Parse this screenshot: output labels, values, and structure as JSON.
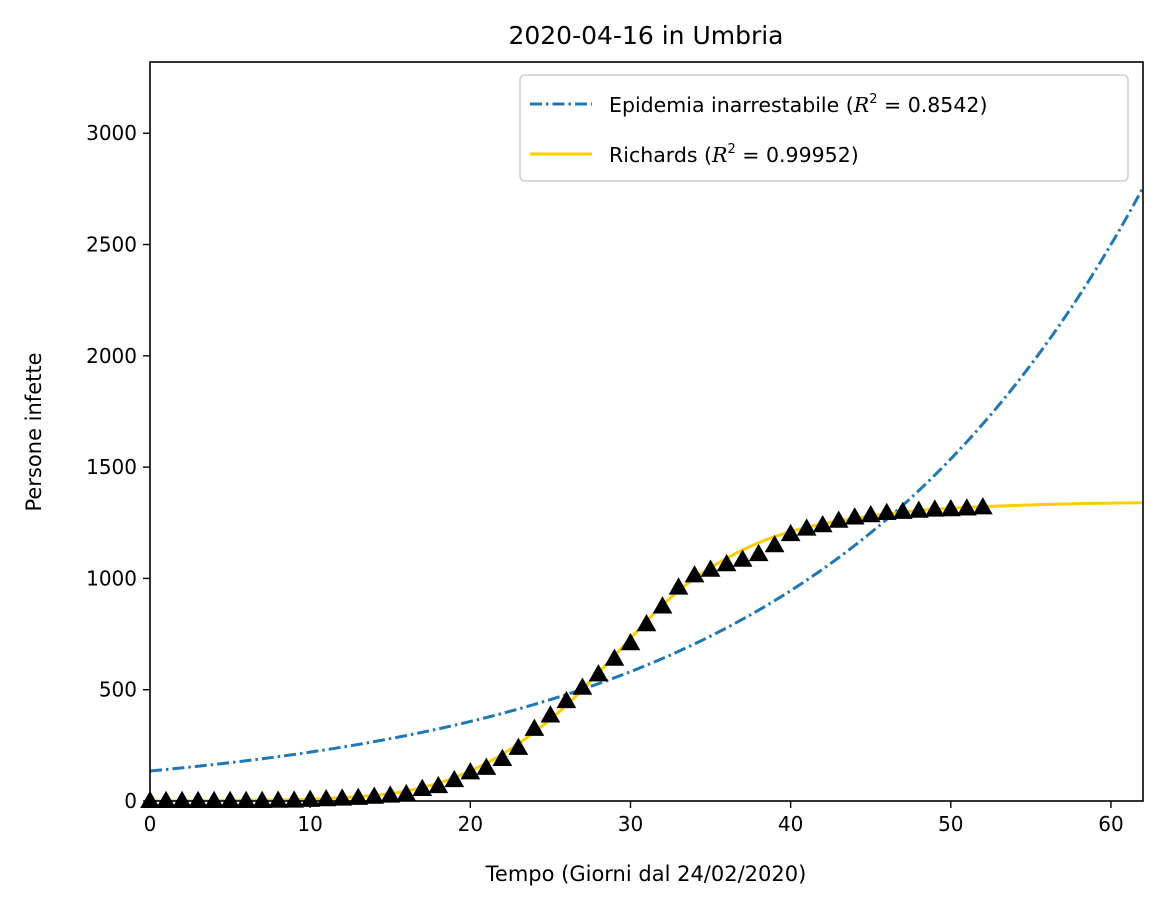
{
  "chart_data": {
    "type": "line",
    "title": "2020-04-16 in Umbria",
    "xlabel": "Tempo (Giorni dal 24/02/2020)",
    "ylabel": "Persone infette",
    "xlim": [
      0,
      62
    ],
    "ylim": [
      0,
      3320
    ],
    "xticks": [
      0,
      10,
      20,
      30,
      40,
      50,
      60
    ],
    "yticks": [
      0,
      500,
      1000,
      1500,
      2000,
      2500,
      3000
    ],
    "grid": false,
    "legend_position": "top-right",
    "series": [
      {
        "name": "Epidemia inarrestabile",
        "r2_text": "0.8542",
        "style": "dashdot",
        "color": "#1f77b4",
        "model": "exponential",
        "x": [
          0,
          5,
          10,
          15,
          20,
          25,
          30,
          35,
          40,
          45,
          50,
          55,
          60,
          62
        ],
        "y": [
          135,
          172,
          219,
          279,
          356,
          455,
          580,
          740,
          945,
          1205,
          1535,
          1955,
          2500,
          2800
        ]
      },
      {
        "name": "Richards",
        "r2_text": "0.99952",
        "style": "solid",
        "color": "#ffcc00",
        "model": "richards",
        "x": [
          0,
          5,
          10,
          14,
          16,
          18,
          20,
          22,
          24,
          26,
          28,
          30,
          32,
          34,
          36,
          38,
          40,
          42,
          44,
          46,
          48,
          50,
          52,
          55,
          58,
          62
        ],
        "y": [
          0,
          2,
          8,
          25,
          45,
          80,
          135,
          210,
          310,
          430,
          575,
          730,
          880,
          1000,
          1090,
          1160,
          1210,
          1245,
          1270,
          1290,
          1305,
          1315,
          1322,
          1330,
          1336,
          1340
        ]
      },
      {
        "name": "",
        "style": "markers",
        "marker": "triangle-up",
        "color": "#000000",
        "x": [
          0,
          1,
          2,
          3,
          4,
          5,
          6,
          7,
          8,
          9,
          10,
          11,
          12,
          13,
          14,
          15,
          16,
          17,
          18,
          19,
          20,
          21,
          22,
          23,
          24,
          25,
          26,
          27,
          28,
          29,
          30,
          31,
          32,
          33,
          34,
          35,
          36,
          37,
          38,
          39,
          40,
          41,
          42,
          43,
          44,
          45,
          46,
          47,
          48,
          49,
          50,
          51,
          52
        ],
        "y": [
          1,
          1,
          1,
          1,
          1,
          1,
          1,
          1,
          2,
          3,
          6,
          9,
          12,
          15,
          20,
          25,
          32,
          55,
          68,
          95,
          130,
          150,
          190,
          240,
          325,
          385,
          450,
          510,
          570,
          640,
          710,
          795,
          875,
          960,
          1015,
          1040,
          1065,
          1085,
          1110,
          1150,
          1200,
          1225,
          1240,
          1260,
          1275,
          1285,
          1295,
          1300,
          1305,
          1310,
          1312,
          1315,
          1320
        ]
      }
    ]
  }
}
